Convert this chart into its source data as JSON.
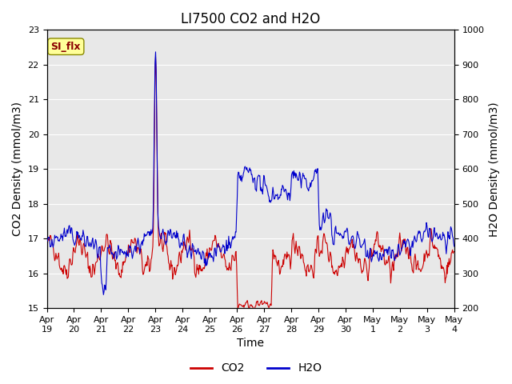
{
  "title": "LI7500 CO2 and H2O",
  "xlabel": "Time",
  "ylabel_left": "CO2 Density (mmol/m3)",
  "ylabel_right": "H2O Density (mmol/m3)",
  "ylim_left": [
    15.0,
    23.0
  ],
  "ylim_right": [
    200,
    1000
  ],
  "x_tick_labels": [
    "Apr 19",
    "Apr 20",
    "Apr 21",
    "Apr 22",
    "Apr 23",
    "Apr 24",
    "Apr 25",
    "Apr 26",
    "Apr 27",
    "Apr 28",
    "Apr 29",
    "Apr 30",
    "May 1",
    "May 2",
    "May 3",
    "May 4"
  ],
  "annotation_text": "SI_flx",
  "annotation_color": "#8B0000",
  "annotation_bg": "#FFFF99",
  "background_color": "#E8E8E8",
  "co2_color": "#CC0000",
  "h2o_color": "#0000CC",
  "legend_co2": "CO2",
  "legend_h2o": "H2O",
  "title_fontsize": 12,
  "axis_label_fontsize": 10,
  "tick_fontsize": 8
}
